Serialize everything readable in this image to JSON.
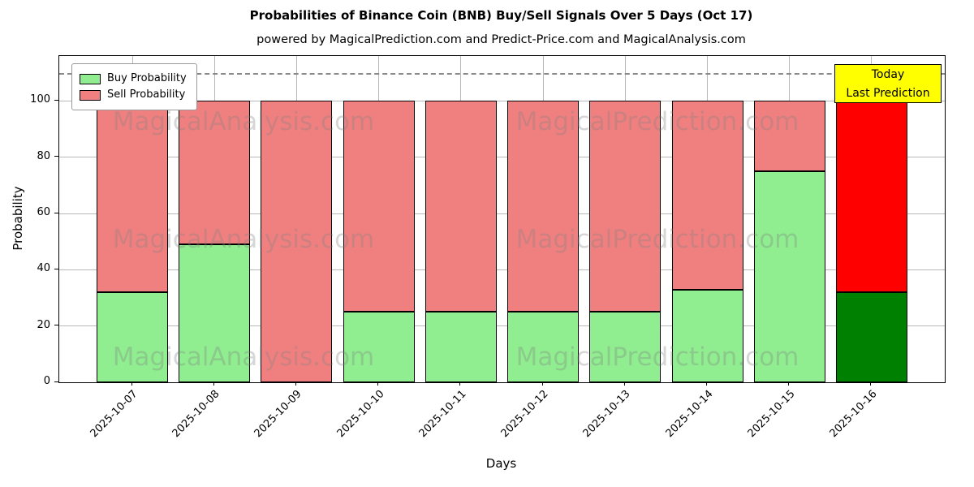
{
  "annotation": {
    "lines": [
      "Today",
      "Last Prediction"
    ],
    "bg_color": "#ffff00"
  },
  "watermarks": {
    "left_text": "MagicalAnalysis.com",
    "right_text": "MagicalPrediction.com"
  },
  "chart_data": {
    "type": "bar",
    "stacked": true,
    "title": "Probabilities of Binance Coin (BNB) Buy/Sell Signals Over 5 Days (Oct 17)",
    "subtitle": "powered by MagicalPrediction.com and Predict-Price.com and MagicalAnalysis.com",
    "xlabel": "Days",
    "ylabel": "Probability",
    "categories": [
      "2025-10-07",
      "2025-10-08",
      "2025-10-09",
      "2025-10-10",
      "2025-10-11",
      "2025-10-12",
      "2025-10-13",
      "2025-10-14",
      "2025-10-15",
      "2025-10-16"
    ],
    "series": [
      {
        "name": "Buy Probability",
        "color": "#90ee90",
        "today_color": "#008000",
        "values": [
          32,
          49,
          0,
          25,
          25,
          25,
          25,
          33,
          75,
          32
        ]
      },
      {
        "name": "Sell Probability",
        "color": "#f08080",
        "today_color": "#ff0000",
        "values": [
          68,
          51,
          100,
          75,
          75,
          75,
          75,
          67,
          25,
          68
        ]
      }
    ],
    "ylim": [
      0,
      116
    ],
    "yticks": [
      0,
      20,
      40,
      60,
      80,
      100
    ],
    "dashed_line_y": 110,
    "dashed_line_color": "#8a8a8a",
    "bar_edge_color": "#000000",
    "today_index": 9,
    "grid": true,
    "grid_color": "#b8b8b8",
    "legend_position": "upper left"
  }
}
